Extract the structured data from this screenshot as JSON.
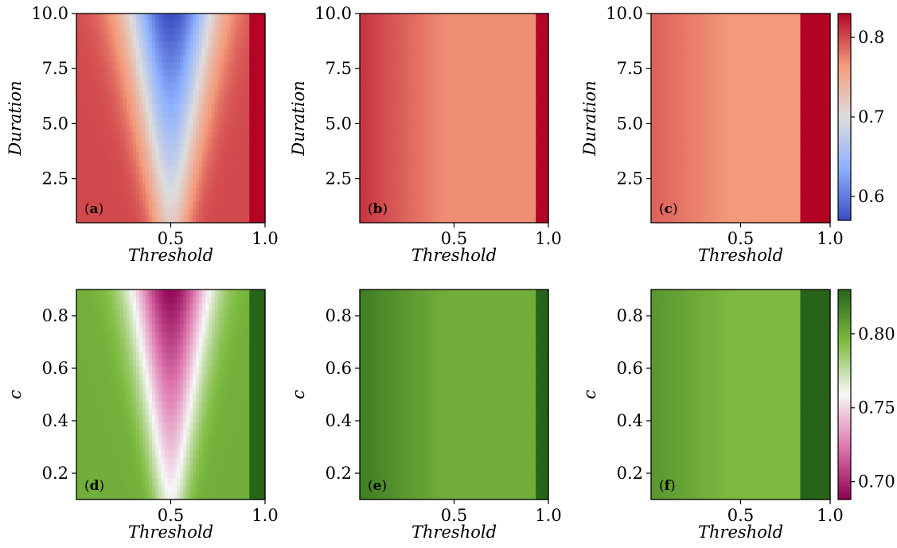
{
  "chart_data": [
    {
      "type": "heatmap",
      "panel": "a",
      "panel_label": "a",
      "xlabel": "Threshold",
      "ylabel": "Duration",
      "xlim": [
        0.0,
        1.0
      ],
      "ylim": [
        0.5,
        10.0
      ],
      "xticks": [
        "0.5",
        "1.0"
      ],
      "yticks": [
        "2.5",
        "5.0",
        "7.5",
        "10.0"
      ],
      "colormap": "coolwarm",
      "value_range": [
        0.57,
        0.83
      ],
      "description_values": {
        "center_min": 0.57,
        "edges": 0.8,
        "right_edge": 0.83
      }
    },
    {
      "type": "heatmap",
      "panel": "b",
      "panel_label": "b",
      "xlabel": "Threshold",
      "ylabel": "Duration",
      "xlim": [
        0.0,
        1.0
      ],
      "ylim": [
        0.5,
        10.0
      ],
      "xticks": [
        "0.5",
        "1.0"
      ],
      "yticks": [
        "2.5",
        "5.0",
        "7.5",
        "10.0"
      ],
      "colormap": "coolwarm",
      "value_range": [
        0.57,
        0.83
      ],
      "description_values": {
        "left_edge": 0.81,
        "plateau": 0.77,
        "right_edge": 0.83
      }
    },
    {
      "type": "heatmap",
      "panel": "c",
      "panel_label": "c",
      "xlabel": "Threshold",
      "ylabel": "Duration",
      "xlim": [
        0.0,
        1.0
      ],
      "ylim": [
        0.5,
        10.0
      ],
      "xticks": [
        "0.5",
        "1.0"
      ],
      "yticks": [
        "2.5",
        "5.0",
        "7.5",
        "10.0"
      ],
      "colormap": "coolwarm",
      "value_range": [
        0.57,
        0.83
      ],
      "description_values": {
        "left_edge": 0.79,
        "plateau": 0.765,
        "right_edge": 0.83
      }
    },
    {
      "type": "heatmap",
      "panel": "d",
      "panel_label": "d",
      "xlabel": "Threshold",
      "ylabel": "c",
      "xlim": [
        0.0,
        1.0
      ],
      "ylim": [
        0.1,
        0.9
      ],
      "xticks": [
        "0.5",
        "1.0"
      ],
      "yticks": [
        "0.2",
        "0.4",
        "0.6",
        "0.8"
      ],
      "colormap": "PiYG",
      "value_range": [
        0.688,
        0.83
      ],
      "description_values": {
        "center_min": 0.69,
        "edges": 0.8,
        "right_edge": 0.83
      }
    },
    {
      "type": "heatmap",
      "panel": "e",
      "panel_label": "e",
      "xlabel": "Threshold",
      "ylabel": "c",
      "xlim": [
        0.0,
        1.0
      ],
      "ylim": [
        0.1,
        0.9
      ],
      "xticks": [
        "0.5",
        "1.0"
      ],
      "yticks": [
        "0.2",
        "0.4",
        "0.6",
        "0.8"
      ],
      "colormap": "PiYG",
      "value_range": [
        0.688,
        0.83
      ],
      "description_values": {
        "left_edge": 0.82,
        "plateau": 0.8,
        "right_edge": 0.83
      }
    },
    {
      "type": "heatmap",
      "panel": "f",
      "panel_label": "f",
      "xlabel": "Threshold",
      "ylabel": "c",
      "xlim": [
        0.0,
        1.0
      ],
      "ylim": [
        0.1,
        0.9
      ],
      "xticks": [
        "0.5",
        "1.0"
      ],
      "yticks": [
        "0.2",
        "0.4",
        "0.6",
        "0.8"
      ],
      "colormap": "PiYG",
      "value_range": [
        0.688,
        0.83
      ],
      "description_values": {
        "left_edge": 0.81,
        "plateau": 0.795,
        "right_edge": 0.83
      }
    }
  ],
  "colorbars": [
    {
      "name": "top",
      "colormap": "coolwarm",
      "range": [
        0.57,
        0.83
      ],
      "ticks": [
        "0.6",
        "0.7",
        "0.8"
      ]
    },
    {
      "name": "bottom",
      "colormap": "PiYG",
      "range": [
        0.688,
        0.83
      ],
      "ticks": [
        "0.70",
        "0.75",
        "0.80"
      ]
    }
  ]
}
